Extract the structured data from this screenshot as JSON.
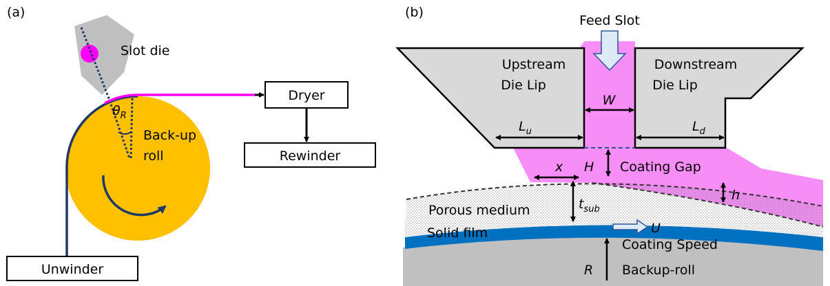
{
  "panel_a": {
    "label": "(a)",
    "slot_die": "Slot die",
    "angle": {
      "symbol": "θ",
      "subscript": "R"
    },
    "dryer": "Dryer",
    "roll": [
      "Back-up",
      "roll"
    ],
    "rewinder": "Rewinder",
    "unwinder": "Unwinder"
  },
  "panel_b": {
    "label": "(b)",
    "feed_slot": "Feed Slot",
    "upstream_lip": [
      "Upstream",
      "Die Lip"
    ],
    "downstream_lip": [
      "Downstream",
      "Die Lip"
    ],
    "slot_width": "W",
    "upstream_length": {
      "symbol": "L",
      "subscript": "u"
    },
    "downstream_length": {
      "symbol": "L",
      "subscript": "d"
    },
    "position": "x",
    "gap_height": "H",
    "coating_gap": "Coating Gap",
    "penetration": "h",
    "porous_medium": "Porous medium",
    "substrate_thickness": {
      "symbol": "t",
      "subscript": "sub"
    },
    "solid_film": "Solid film",
    "speed_symbol": "U",
    "coating_speed": "Coating Speed",
    "radius_symbol": "R",
    "backup_roll": "Backup-roll"
  }
}
